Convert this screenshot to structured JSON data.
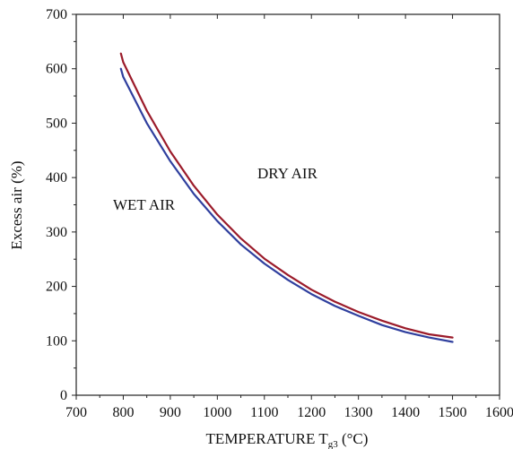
{
  "chart_data": {
    "type": "line",
    "xlabel": {
      "main": "TEMPERATURE  T",
      "sub": "g3",
      "unit": " (°C)"
    },
    "ylabel": "Excess air (%)",
    "xlim": [
      700,
      1600
    ],
    "ylim": [
      0,
      700
    ],
    "xticks": [
      700,
      800,
      900,
      1000,
      1100,
      1200,
      1300,
      1400,
      1500,
      1600
    ],
    "yticks": [
      0,
      100,
      200,
      300,
      400,
      500,
      600,
      700
    ],
    "grid": false,
    "series": [
      {
        "name": "DRY AIR",
        "color": "#9b1b2a",
        "x": [
          795,
          800,
          850,
          900,
          950,
          1000,
          1050,
          1100,
          1150,
          1200,
          1250,
          1300,
          1350,
          1400,
          1450,
          1500
        ],
        "y": [
          628,
          612,
          523,
          448,
          385,
          332,
          288,
          251,
          221,
          194,
          172,
          153,
          137,
          123,
          112,
          106
        ]
      },
      {
        "name": "WET AIR",
        "color": "#2f3f9e",
        "x": [
          795,
          800,
          850,
          900,
          950,
          1000,
          1050,
          1100,
          1150,
          1200,
          1250,
          1300,
          1350,
          1400,
          1450,
          1500
        ],
        "y": [
          600,
          585,
          500,
          430,
          370,
          320,
          277,
          242,
          212,
          186,
          164,
          146,
          129,
          116,
          106,
          98
        ]
      }
    ]
  }
}
